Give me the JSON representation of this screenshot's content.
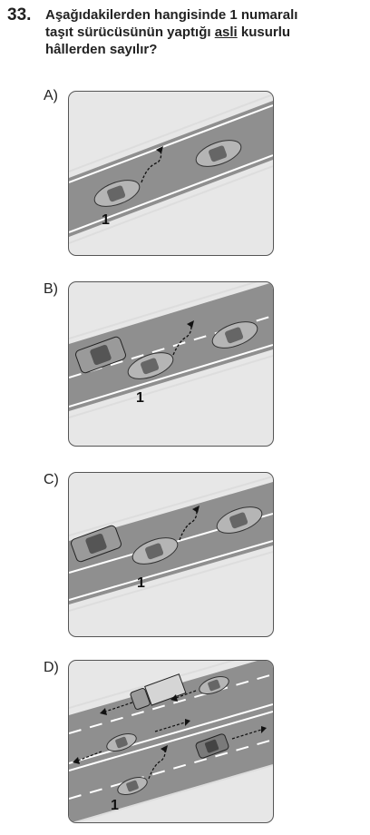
{
  "question": {
    "number": "33.",
    "line1": "Aşağıdakilerden hangisinde 1 numaralı",
    "line2_before": "taşıt sürücüsünün yaptığı ",
    "line2_underlined": "asli",
    "line2_after": " kusurlu",
    "line3": "hâllerden sayılır?"
  },
  "options": [
    {
      "label": "A)",
      "car_number": "1"
    },
    {
      "label": "B)",
      "car_number": "1"
    },
    {
      "label": "C)",
      "car_number": "1"
    },
    {
      "label": "D)",
      "car_number": "1"
    }
  ],
  "colors": {
    "road": "#8f8f8f",
    "verge": "#e7e7e7",
    "car": "#b9b9b9",
    "border": "#555555"
  }
}
